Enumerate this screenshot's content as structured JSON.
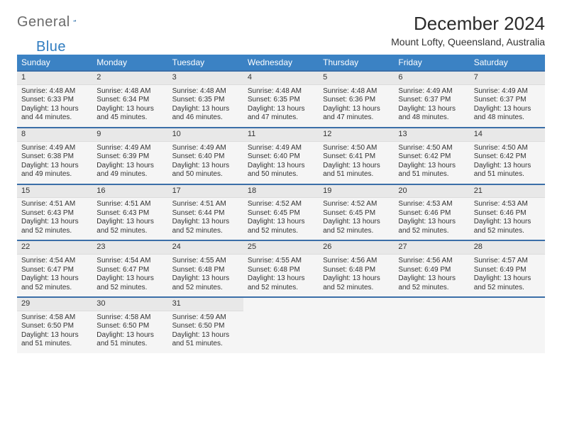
{
  "logo": {
    "text1": "General",
    "text2": "Blue"
  },
  "title": "December 2024",
  "location": "Mount Lofty, Queensland, Australia",
  "colors": {
    "header_blue": "#3b82c4",
    "row_divider": "#3b6fa8",
    "daynum_bg": "#e8e8e8",
    "cell_bg": "#f5f5f5",
    "page_bg": "#ffffff"
  },
  "weekdays": [
    "Sunday",
    "Monday",
    "Tuesday",
    "Wednesday",
    "Thursday",
    "Friday",
    "Saturday"
  ],
  "weeks": [
    [
      {
        "day": 1,
        "sunrise": "4:48 AM",
        "sunset": "6:33 PM",
        "daylight": "13 hours and 44 minutes."
      },
      {
        "day": 2,
        "sunrise": "4:48 AM",
        "sunset": "6:34 PM",
        "daylight": "13 hours and 45 minutes."
      },
      {
        "day": 3,
        "sunrise": "4:48 AM",
        "sunset": "6:35 PM",
        "daylight": "13 hours and 46 minutes."
      },
      {
        "day": 4,
        "sunrise": "4:48 AM",
        "sunset": "6:35 PM",
        "daylight": "13 hours and 47 minutes."
      },
      {
        "day": 5,
        "sunrise": "4:48 AM",
        "sunset": "6:36 PM",
        "daylight": "13 hours and 47 minutes."
      },
      {
        "day": 6,
        "sunrise": "4:49 AM",
        "sunset": "6:37 PM",
        "daylight": "13 hours and 48 minutes."
      },
      {
        "day": 7,
        "sunrise": "4:49 AM",
        "sunset": "6:37 PM",
        "daylight": "13 hours and 48 minutes."
      }
    ],
    [
      {
        "day": 8,
        "sunrise": "4:49 AM",
        "sunset": "6:38 PM",
        "daylight": "13 hours and 49 minutes."
      },
      {
        "day": 9,
        "sunrise": "4:49 AM",
        "sunset": "6:39 PM",
        "daylight": "13 hours and 49 minutes."
      },
      {
        "day": 10,
        "sunrise": "4:49 AM",
        "sunset": "6:40 PM",
        "daylight": "13 hours and 50 minutes."
      },
      {
        "day": 11,
        "sunrise": "4:49 AM",
        "sunset": "6:40 PM",
        "daylight": "13 hours and 50 minutes."
      },
      {
        "day": 12,
        "sunrise": "4:50 AM",
        "sunset": "6:41 PM",
        "daylight": "13 hours and 51 minutes."
      },
      {
        "day": 13,
        "sunrise": "4:50 AM",
        "sunset": "6:42 PM",
        "daylight": "13 hours and 51 minutes."
      },
      {
        "day": 14,
        "sunrise": "4:50 AM",
        "sunset": "6:42 PM",
        "daylight": "13 hours and 51 minutes."
      }
    ],
    [
      {
        "day": 15,
        "sunrise": "4:51 AM",
        "sunset": "6:43 PM",
        "daylight": "13 hours and 52 minutes."
      },
      {
        "day": 16,
        "sunrise": "4:51 AM",
        "sunset": "6:43 PM",
        "daylight": "13 hours and 52 minutes."
      },
      {
        "day": 17,
        "sunrise": "4:51 AM",
        "sunset": "6:44 PM",
        "daylight": "13 hours and 52 minutes."
      },
      {
        "day": 18,
        "sunrise": "4:52 AM",
        "sunset": "6:45 PM",
        "daylight": "13 hours and 52 minutes."
      },
      {
        "day": 19,
        "sunrise": "4:52 AM",
        "sunset": "6:45 PM",
        "daylight": "13 hours and 52 minutes."
      },
      {
        "day": 20,
        "sunrise": "4:53 AM",
        "sunset": "6:46 PM",
        "daylight": "13 hours and 52 minutes."
      },
      {
        "day": 21,
        "sunrise": "4:53 AM",
        "sunset": "6:46 PM",
        "daylight": "13 hours and 52 minutes."
      }
    ],
    [
      {
        "day": 22,
        "sunrise": "4:54 AM",
        "sunset": "6:47 PM",
        "daylight": "13 hours and 52 minutes."
      },
      {
        "day": 23,
        "sunrise": "4:54 AM",
        "sunset": "6:47 PM",
        "daylight": "13 hours and 52 minutes."
      },
      {
        "day": 24,
        "sunrise": "4:55 AM",
        "sunset": "6:48 PM",
        "daylight": "13 hours and 52 minutes."
      },
      {
        "day": 25,
        "sunrise": "4:55 AM",
        "sunset": "6:48 PM",
        "daylight": "13 hours and 52 minutes."
      },
      {
        "day": 26,
        "sunrise": "4:56 AM",
        "sunset": "6:48 PM",
        "daylight": "13 hours and 52 minutes."
      },
      {
        "day": 27,
        "sunrise": "4:56 AM",
        "sunset": "6:49 PM",
        "daylight": "13 hours and 52 minutes."
      },
      {
        "day": 28,
        "sunrise": "4:57 AM",
        "sunset": "6:49 PM",
        "daylight": "13 hours and 52 minutes."
      }
    ],
    [
      {
        "day": 29,
        "sunrise": "4:58 AM",
        "sunset": "6:50 PM",
        "daylight": "13 hours and 51 minutes."
      },
      {
        "day": 30,
        "sunrise": "4:58 AM",
        "sunset": "6:50 PM",
        "daylight": "13 hours and 51 minutes."
      },
      {
        "day": 31,
        "sunrise": "4:59 AM",
        "sunset": "6:50 PM",
        "daylight": "13 hours and 51 minutes."
      },
      null,
      null,
      null,
      null
    ]
  ],
  "labels": {
    "sunrise": "Sunrise: ",
    "sunset": "Sunset: ",
    "daylight": "Daylight: "
  }
}
